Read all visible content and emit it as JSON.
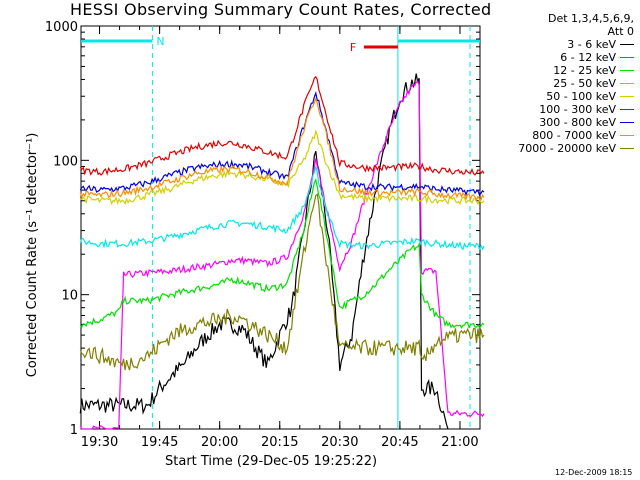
{
  "chart_data": {
    "type": "line",
    "title": "HESSI Observing Summary Count Rates, Corrected",
    "xlabel": "Start Time (29-Dec-05 19:25:22)",
    "ylabel": "Corrected Count Rate (s⁻¹ detector⁻¹)",
    "yscale": "log",
    "ylim": [
      1,
      1000
    ],
    "yticks": [
      "1",
      "10",
      "100",
      "1000"
    ],
    "xticks": [
      "19:30",
      "19:45",
      "20:00",
      "20:15",
      "20:30",
      "20:45",
      "21:00"
    ],
    "legend_header": [
      "Det 1,3,4,5,6,9,",
      "Att 0"
    ],
    "flags": {
      "night": "N",
      "flare": "F"
    },
    "series": [
      {
        "name": "3 - 6 keV",
        "color": "#000000",
        "points": [
          [
            19.42,
            1.5
          ],
          [
            19.45,
            1.5
          ],
          [
            19.5,
            1.5
          ],
          [
            19.6,
            1.5
          ],
          [
            19.7,
            1.5
          ],
          [
            19.75,
            2
          ],
          [
            19.8,
            2.5
          ],
          [
            19.85,
            3
          ],
          [
            19.9,
            4
          ],
          [
            19.95,
            5
          ],
          [
            20.0,
            6
          ],
          [
            20.05,
            6
          ],
          [
            20.1,
            5.5
          ],
          [
            20.15,
            4
          ],
          [
            20.2,
            3
          ],
          [
            20.25,
            5
          ],
          [
            20.3,
            8
          ],
          [
            20.35,
            30
          ],
          [
            20.4,
            115
          ],
          [
            20.45,
            30
          ],
          [
            20.5,
            3
          ],
          [
            20.55,
            5
          ],
          [
            20.6,
            20
          ],
          [
            20.65,
            60
          ],
          [
            20.7,
            150
          ],
          [
            20.75,
            300
          ],
          [
            20.8,
            380
          ],
          [
            20.83,
            390
          ],
          [
            20.84,
            2
          ],
          [
            20.9,
            2
          ],
          [
            20.95,
            1
          ]
        ]
      },
      {
        "name": "6 - 12 keV",
        "color": "#ff00ff",
        "points": [
          [
            19.42,
            1
          ],
          [
            19.5,
            1
          ],
          [
            19.58,
            1
          ],
          [
            19.6,
            14
          ],
          [
            19.7,
            14.5
          ],
          [
            19.8,
            15
          ],
          [
            19.9,
            16
          ],
          [
            20.0,
            17
          ],
          [
            20.05,
            18
          ],
          [
            20.1,
            18
          ],
          [
            20.2,
            17
          ],
          [
            20.28,
            19
          ],
          [
            20.35,
            40
          ],
          [
            20.4,
            98
          ],
          [
            20.45,
            40
          ],
          [
            20.5,
            16
          ],
          [
            20.55,
            25
          ],
          [
            20.6,
            50
          ],
          [
            20.65,
            90
          ],
          [
            20.7,
            160
          ],
          [
            20.75,
            260
          ],
          [
            20.8,
            350
          ],
          [
            20.83,
            380
          ],
          [
            20.84,
            15
          ],
          [
            20.9,
            15
          ],
          [
            20.95,
            1.3
          ],
          [
            21.1,
            1.3
          ]
        ]
      },
      {
        "name": "12 - 25 keV",
        "color": "#00e000",
        "points": [
          [
            19.42,
            6
          ],
          [
            19.5,
            6.5
          ],
          [
            19.58,
            7.5
          ],
          [
            19.6,
            9
          ],
          [
            19.7,
            9
          ],
          [
            19.8,
            10
          ],
          [
            19.9,
            11
          ],
          [
            20.0,
            12
          ],
          [
            20.05,
            13
          ],
          [
            20.1,
            12.5
          ],
          [
            20.2,
            11
          ],
          [
            20.28,
            12
          ],
          [
            20.35,
            30
          ],
          [
            20.4,
            75
          ],
          [
            20.45,
            25
          ],
          [
            20.5,
            8
          ],
          [
            20.55,
            9
          ],
          [
            20.6,
            10
          ],
          [
            20.65,
            12
          ],
          [
            20.7,
            15
          ],
          [
            20.75,
            18
          ],
          [
            20.8,
            22
          ],
          [
            20.83,
            23
          ],
          [
            20.84,
            10
          ],
          [
            20.9,
            7
          ],
          [
            20.95,
            6
          ],
          [
            21.1,
            6
          ]
        ]
      },
      {
        "name": "25 - 50 keV",
        "color": "#00e8e8",
        "points": [
          [
            19.42,
            25
          ],
          [
            19.5,
            24
          ],
          [
            19.6,
            24
          ],
          [
            19.7,
            25
          ],
          [
            19.8,
            27
          ],
          [
            19.9,
            30
          ],
          [
            20.0,
            33
          ],
          [
            20.05,
            34
          ],
          [
            20.1,
            34
          ],
          [
            20.2,
            32
          ],
          [
            20.28,
            30
          ],
          [
            20.35,
            45
          ],
          [
            20.4,
            85
          ],
          [
            20.45,
            40
          ],
          [
            20.5,
            24
          ],
          [
            20.6,
            23
          ],
          [
            20.7,
            24
          ],
          [
            20.8,
            25
          ],
          [
            20.83,
            25
          ],
          [
            20.9,
            24
          ],
          [
            21.0,
            23
          ],
          [
            21.1,
            23
          ]
        ]
      },
      {
        "name": "50 - 100 keV",
        "color": "#d0d000",
        "points": [
          [
            19.42,
            52
          ],
          [
            19.5,
            50
          ],
          [
            19.6,
            50
          ],
          [
            19.7,
            55
          ],
          [
            19.8,
            62
          ],
          [
            19.9,
            72
          ],
          [
            20.0,
            78
          ],
          [
            20.05,
            80
          ],
          [
            20.1,
            78
          ],
          [
            20.2,
            72
          ],
          [
            20.28,
            65
          ],
          [
            20.35,
            100
          ],
          [
            20.4,
            160
          ],
          [
            20.45,
            90
          ],
          [
            20.5,
            55
          ],
          [
            20.6,
            52
          ],
          [
            20.7,
            52
          ],
          [
            20.8,
            52
          ],
          [
            20.83,
            52
          ],
          [
            20.9,
            51
          ],
          [
            21.0,
            50
          ],
          [
            21.1,
            50
          ]
        ]
      },
      {
        "name": "100 - 300 keV",
        "color": "#e00000",
        "points": [
          [
            19.42,
            85
          ],
          [
            19.5,
            82
          ],
          [
            19.6,
            86
          ],
          [
            19.7,
            95
          ],
          [
            19.8,
            110
          ],
          [
            19.9,
            125
          ],
          [
            20.0,
            135
          ],
          [
            20.05,
            135
          ],
          [
            20.1,
            130
          ],
          [
            20.2,
            115
          ],
          [
            20.28,
            105
          ],
          [
            20.35,
            250
          ],
          [
            20.4,
            420
          ],
          [
            20.45,
            200
          ],
          [
            20.5,
            95
          ],
          [
            20.6,
            88
          ],
          [
            20.7,
            88
          ],
          [
            20.8,
            90
          ],
          [
            20.83,
            90
          ],
          [
            20.9,
            85
          ],
          [
            21.0,
            82
          ],
          [
            21.1,
            80
          ]
        ]
      },
      {
        "name": "300 - 800 keV",
        "color": "#0000e0",
        "points": [
          [
            19.42,
            62
          ],
          [
            19.5,
            60
          ],
          [
            19.6,
            62
          ],
          [
            19.7,
            68
          ],
          [
            19.8,
            78
          ],
          [
            19.9,
            88
          ],
          [
            20.0,
            93
          ],
          [
            20.05,
            94
          ],
          [
            20.1,
            92
          ],
          [
            20.2,
            82
          ],
          [
            20.28,
            74
          ],
          [
            20.35,
            180
          ],
          [
            20.4,
            320
          ],
          [
            20.45,
            150
          ],
          [
            20.5,
            68
          ],
          [
            20.6,
            64
          ],
          [
            20.7,
            63
          ],
          [
            20.8,
            64
          ],
          [
            20.83,
            64
          ],
          [
            20.9,
            61
          ],
          [
            21.0,
            59
          ],
          [
            21.1,
            58
          ]
        ]
      },
      {
        "name": "800 - 7000 keV",
        "color": "#ff8c00",
        "points": [
          [
            19.42,
            56
          ],
          [
            19.5,
            55
          ],
          [
            19.6,
            57
          ],
          [
            19.7,
            62
          ],
          [
            19.8,
            70
          ],
          [
            19.9,
            80
          ],
          [
            20.0,
            85
          ],
          [
            20.05,
            86
          ],
          [
            20.1,
            84
          ],
          [
            20.2,
            75
          ],
          [
            20.28,
            67
          ],
          [
            20.35,
            170
          ],
          [
            20.4,
            300
          ],
          [
            20.45,
            140
          ],
          [
            20.5,
            62
          ],
          [
            20.6,
            58
          ],
          [
            20.7,
            57
          ],
          [
            20.8,
            58
          ],
          [
            20.83,
            58
          ],
          [
            20.9,
            56
          ],
          [
            21.0,
            54
          ],
          [
            21.1,
            53
          ]
        ]
      },
      {
        "name": "7000 - 20000 keV",
        "color": "#808000",
        "points": [
          [
            19.42,
            4
          ],
          [
            19.5,
            3.5
          ],
          [
            19.6,
            3
          ],
          [
            19.7,
            3.5
          ],
          [
            19.8,
            5
          ],
          [
            19.9,
            6
          ],
          [
            20.0,
            6.5
          ],
          [
            20.05,
            7
          ],
          [
            20.1,
            6.5
          ],
          [
            20.2,
            5
          ],
          [
            20.28,
            4
          ],
          [
            20.35,
            20
          ],
          [
            20.4,
            60
          ],
          [
            20.45,
            15
          ],
          [
            20.5,
            4
          ],
          [
            20.6,
            4
          ],
          [
            20.7,
            4
          ],
          [
            20.8,
            4
          ],
          [
            20.83,
            4
          ],
          [
            20.84,
            3
          ],
          [
            20.9,
            4.5
          ],
          [
            21.0,
            5
          ],
          [
            21.1,
            5
          ]
        ]
      }
    ]
  },
  "timestamp": "12-Dec-2009 18:15"
}
